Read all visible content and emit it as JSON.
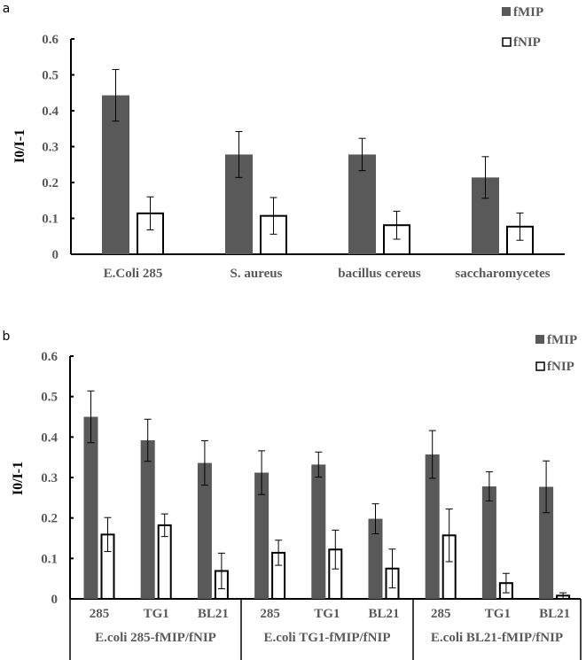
{
  "colors": {
    "fMIP": "#595959",
    "fNIP": "#ffffff",
    "axis": "#000000",
    "text": "#595959"
  },
  "chart_data": [
    {
      "panel_label": "a",
      "type": "bar",
      "ylabel": "I0/I-1",
      "ylim": [
        0,
        0.6
      ],
      "yticks": [
        "0",
        "0.1",
        "0.2",
        "0.3",
        "0.4",
        "0.5",
        "0.6"
      ],
      "categories": [
        "E.Coli 285",
        "S. aureus",
        "bacillus cereus",
        "saccharomycetes"
      ],
      "legend_position": "top-right",
      "series": [
        {
          "name": "fMIP",
          "values": [
            0.443,
            0.278,
            0.278,
            0.214
          ],
          "errors": [
            0.072,
            0.064,
            0.045,
            0.058
          ]
        },
        {
          "name": "fNIP",
          "values": [
            0.114,
            0.107,
            0.081,
            0.077
          ],
          "errors": [
            0.046,
            0.051,
            0.039,
            0.038
          ]
        }
      ]
    },
    {
      "panel_label": "b",
      "type": "bar",
      "ylabel": "I0/I-1",
      "ylim": [
        0,
        0.6
      ],
      "yticks": [
        "0",
        "0.1",
        "0.2",
        "0.3",
        "0.4",
        "0.5",
        "0.6"
      ],
      "categories": [
        "285",
        "TG1",
        "BL21",
        "285",
        "TG1",
        "BL21",
        "285",
        "TG1",
        "BL21"
      ],
      "groups": [
        "E.coli 285-fMIP/fNIP",
        "E.coli TG1-fMIP/fNIP",
        "E.coli BL21-fMIP/fNIP"
      ],
      "legend_position": "top-right",
      "series": [
        {
          "name": "fMIP",
          "values": [
            0.45,
            0.392,
            0.336,
            0.312,
            0.332,
            0.198,
            0.357,
            0.278,
            0.277
          ],
          "errors": [
            0.064,
            0.052,
            0.055,
            0.054,
            0.031,
            0.037,
            0.059,
            0.036,
            0.064
          ]
        },
        {
          "name": "fNIP",
          "values": [
            0.159,
            0.182,
            0.069,
            0.114,
            0.122,
            0.075,
            0.157,
            0.039,
            0.008
          ],
          "errors": [
            0.042,
            0.028,
            0.044,
            0.031,
            0.048,
            0.048,
            0.065,
            0.024,
            0.007
          ]
        }
      ]
    }
  ]
}
